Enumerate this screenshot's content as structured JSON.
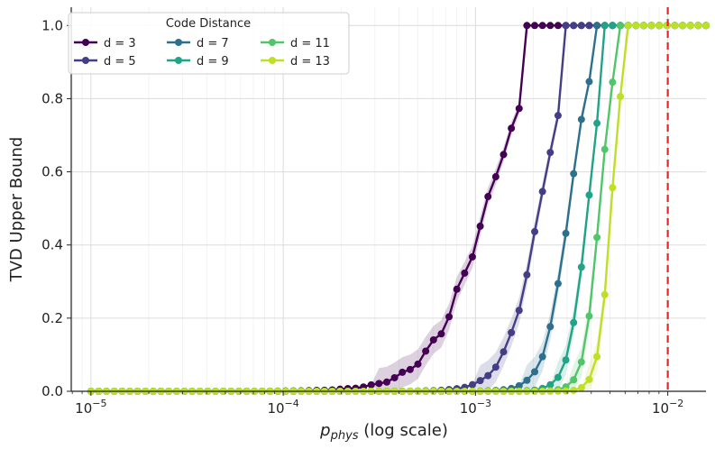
{
  "chart_data": {
    "type": "line",
    "x_scale": "log",
    "xlabel_main": "p",
    "xlabel_sub": "phys",
    "xlabel_suffix": " (log scale)",
    "ylabel": "TVD Upper Bound",
    "xlim": [
      7.9e-06,
      0.0158
    ],
    "ylim": [
      0.0,
      1.05
    ],
    "x_ticks": [
      {
        "value": 1e-05,
        "base": "10",
        "exp": "−5"
      },
      {
        "value": 0.0001,
        "base": "10",
        "exp": "−4"
      },
      {
        "value": 0.001,
        "base": "10",
        "exp": "−3"
      },
      {
        "value": 0.01,
        "base": "10",
        "exp": "−2"
      }
    ],
    "y_ticks": [
      "0.0",
      "0.2",
      "0.4",
      "0.6",
      "0.8",
      "1.0"
    ],
    "y_tick_values": [
      0.0,
      0.2,
      0.4,
      0.6,
      0.8,
      1.0
    ],
    "grid": true,
    "threshold_line": {
      "x": 0.01,
      "color": "#e8262a",
      "style": "dashed"
    },
    "legend": {
      "title": "Code Distance",
      "placement": "top-left",
      "columns": 3
    },
    "x_range": {
      "start": 1e-05,
      "end": 0.0158,
      "points": 80
    },
    "series": [
      {
        "name": "d = 3",
        "color": "#440154",
        "k": 3,
        "x50": 0.00113,
        "sat": 0.00178,
        "wobble": 0.025
      },
      {
        "name": "d = 5",
        "color": "#433e85",
        "k": 5,
        "x50": 0.00215,
        "sat": 0.00295,
        "wobble": 0.012
      },
      {
        "name": "d = 7",
        "color": "#2d708e",
        "k": 7,
        "x50": 0.00306,
        "sat": 0.00393,
        "wobble": 0.012
      },
      {
        "name": "d = 9",
        "color": "#20a386",
        "k": 9,
        "x50": 0.00383,
        "sat": 0.00468,
        "wobble": 0.012
      },
      {
        "name": "d = 11",
        "color": "#51c569",
        "k": 11,
        "x50": 0.00442,
        "sat": 0.00525,
        "wobble": 0.012
      },
      {
        "name": "d = 13",
        "color": "#bddf26",
        "k": 13,
        "x50": 0.00508,
        "sat": 0.0059,
        "wobble": 0.012
      }
    ]
  }
}
